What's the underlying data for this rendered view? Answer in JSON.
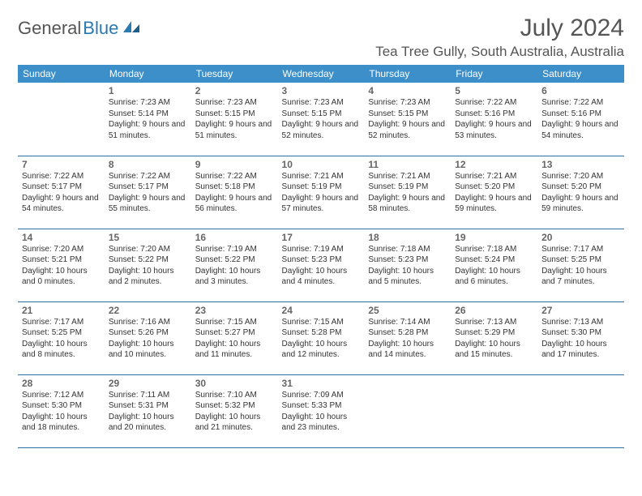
{
  "brand": {
    "part1": "General",
    "part2": "Blue"
  },
  "title": "July 2024",
  "location": "Tea Tree Gully, South Australia, Australia",
  "colors": {
    "header_bg": "#3d8fc9",
    "header_fg": "#ffffff",
    "rule": "#2c6fa3",
    "brand_blue": "#2a7ab0",
    "text": "#333333"
  },
  "day_headers": [
    "Sunday",
    "Monday",
    "Tuesday",
    "Wednesday",
    "Thursday",
    "Friday",
    "Saturday"
  ],
  "weeks": [
    [
      null,
      {
        "n": "1",
        "sr": "7:23 AM",
        "ss": "5:14 PM",
        "dl": "9 hours and 51 minutes."
      },
      {
        "n": "2",
        "sr": "7:23 AM",
        "ss": "5:15 PM",
        "dl": "9 hours and 51 minutes."
      },
      {
        "n": "3",
        "sr": "7:23 AM",
        "ss": "5:15 PM",
        "dl": "9 hours and 52 minutes."
      },
      {
        "n": "4",
        "sr": "7:23 AM",
        "ss": "5:15 PM",
        "dl": "9 hours and 52 minutes."
      },
      {
        "n": "5",
        "sr": "7:22 AM",
        "ss": "5:16 PM",
        "dl": "9 hours and 53 minutes."
      },
      {
        "n": "6",
        "sr": "7:22 AM",
        "ss": "5:16 PM",
        "dl": "9 hours and 54 minutes."
      }
    ],
    [
      {
        "n": "7",
        "sr": "7:22 AM",
        "ss": "5:17 PM",
        "dl": "9 hours and 54 minutes."
      },
      {
        "n": "8",
        "sr": "7:22 AM",
        "ss": "5:17 PM",
        "dl": "9 hours and 55 minutes."
      },
      {
        "n": "9",
        "sr": "7:22 AM",
        "ss": "5:18 PM",
        "dl": "9 hours and 56 minutes."
      },
      {
        "n": "10",
        "sr": "7:21 AM",
        "ss": "5:19 PM",
        "dl": "9 hours and 57 minutes."
      },
      {
        "n": "11",
        "sr": "7:21 AM",
        "ss": "5:19 PM",
        "dl": "9 hours and 58 minutes."
      },
      {
        "n": "12",
        "sr": "7:21 AM",
        "ss": "5:20 PM",
        "dl": "9 hours and 59 minutes."
      },
      {
        "n": "13",
        "sr": "7:20 AM",
        "ss": "5:20 PM",
        "dl": "9 hours and 59 minutes."
      }
    ],
    [
      {
        "n": "14",
        "sr": "7:20 AM",
        "ss": "5:21 PM",
        "dl": "10 hours and 0 minutes."
      },
      {
        "n": "15",
        "sr": "7:20 AM",
        "ss": "5:22 PM",
        "dl": "10 hours and 2 minutes."
      },
      {
        "n": "16",
        "sr": "7:19 AM",
        "ss": "5:22 PM",
        "dl": "10 hours and 3 minutes."
      },
      {
        "n": "17",
        "sr": "7:19 AM",
        "ss": "5:23 PM",
        "dl": "10 hours and 4 minutes."
      },
      {
        "n": "18",
        "sr": "7:18 AM",
        "ss": "5:23 PM",
        "dl": "10 hours and 5 minutes."
      },
      {
        "n": "19",
        "sr": "7:18 AM",
        "ss": "5:24 PM",
        "dl": "10 hours and 6 minutes."
      },
      {
        "n": "20",
        "sr": "7:17 AM",
        "ss": "5:25 PM",
        "dl": "10 hours and 7 minutes."
      }
    ],
    [
      {
        "n": "21",
        "sr": "7:17 AM",
        "ss": "5:25 PM",
        "dl": "10 hours and 8 minutes."
      },
      {
        "n": "22",
        "sr": "7:16 AM",
        "ss": "5:26 PM",
        "dl": "10 hours and 10 minutes."
      },
      {
        "n": "23",
        "sr": "7:15 AM",
        "ss": "5:27 PM",
        "dl": "10 hours and 11 minutes."
      },
      {
        "n": "24",
        "sr": "7:15 AM",
        "ss": "5:28 PM",
        "dl": "10 hours and 12 minutes."
      },
      {
        "n": "25",
        "sr": "7:14 AM",
        "ss": "5:28 PM",
        "dl": "10 hours and 14 minutes."
      },
      {
        "n": "26",
        "sr": "7:13 AM",
        "ss": "5:29 PM",
        "dl": "10 hours and 15 minutes."
      },
      {
        "n": "27",
        "sr": "7:13 AM",
        "ss": "5:30 PM",
        "dl": "10 hours and 17 minutes."
      }
    ],
    [
      {
        "n": "28",
        "sr": "7:12 AM",
        "ss": "5:30 PM",
        "dl": "10 hours and 18 minutes."
      },
      {
        "n": "29",
        "sr": "7:11 AM",
        "ss": "5:31 PM",
        "dl": "10 hours and 20 minutes."
      },
      {
        "n": "30",
        "sr": "7:10 AM",
        "ss": "5:32 PM",
        "dl": "10 hours and 21 minutes."
      },
      {
        "n": "31",
        "sr": "7:09 AM",
        "ss": "5:33 PM",
        "dl": "10 hours and 23 minutes."
      },
      null,
      null,
      null
    ]
  ],
  "labels": {
    "sunrise": "Sunrise:",
    "sunset": "Sunset:",
    "daylight": "Daylight:"
  }
}
